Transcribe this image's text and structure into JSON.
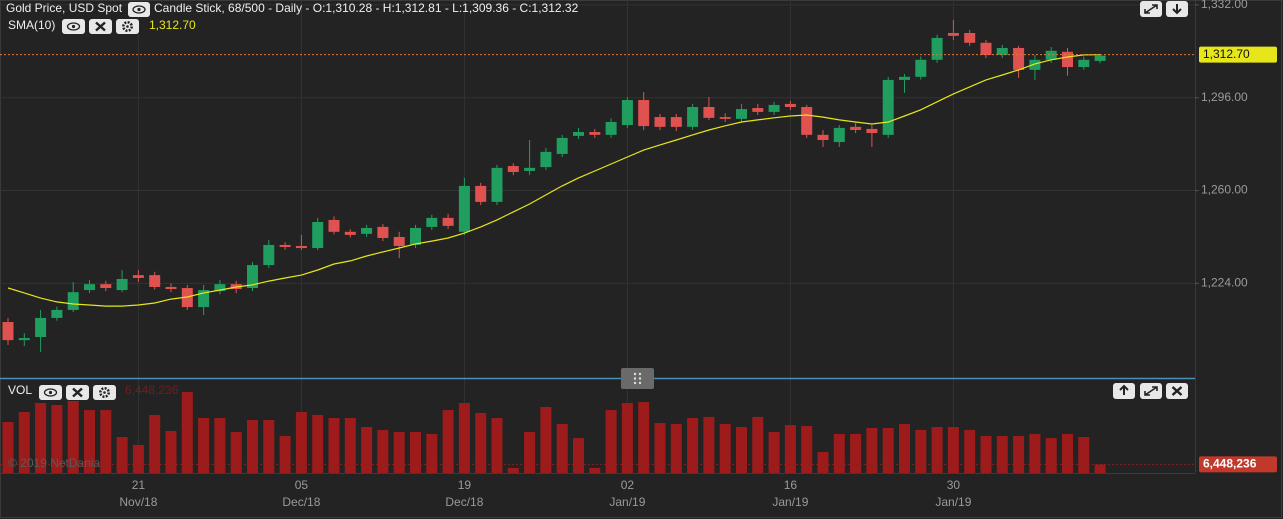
{
  "chart_data": [
    {
      "type": "candlestick",
      "title": "Gold Price, USD Spot",
      "subtitle": "Candle Stick, 68/500 - Daily - O:1,310.28 - H:1,312.81 - L:1,309.36 - C:1,312.32",
      "categories": [
        null,
        null,
        null,
        null,
        null,
        null,
        null,
        null,
        [
          "21",
          "Nov/18"
        ],
        null,
        null,
        null,
        null,
        null,
        null,
        null,
        null,
        null,
        [
          "05",
          "Dec/18"
        ],
        null,
        null,
        null,
        null,
        null,
        null,
        null,
        null,
        null,
        [
          "19",
          "Dec/18"
        ],
        null,
        null,
        null,
        null,
        null,
        null,
        null,
        null,
        null,
        [
          "02",
          "Jan/19"
        ],
        null,
        null,
        null,
        null,
        null,
        null,
        null,
        null,
        null,
        [
          "16",
          "Jan/19"
        ],
        null,
        null,
        null,
        null,
        null,
        null,
        null,
        null,
        null,
        [
          "30",
          "Jan/19"
        ],
        null,
        null,
        null,
        null,
        null,
        null,
        null,
        null,
        null
      ],
      "open": [
        1209.0,
        1202.0,
        1203.2,
        1210.6,
        1213.7,
        1221.4,
        1223.7,
        1221.4,
        1227.2,
        1227.2,
        1222.6,
        1222.2,
        1214.8,
        1221.0,
        1223.7,
        1222.2,
        1231.1,
        1238.9,
        1238.5,
        1237.7,
        1248.6,
        1244.0,
        1243.2,
        1245.9,
        1242.0,
        1238.9,
        1245.9,
        1249.4,
        1244.0,
        1261.8,
        1255.6,
        1269.5,
        1267.6,
        1269.1,
        1274.2,
        1281.2,
        1282.7,
        1281.6,
        1285.4,
        1295.1,
        1288.5,
        1288.5,
        1284.7,
        1292.4,
        1288.5,
        1287.8,
        1292.0,
        1290.5,
        1293.6,
        1292.4,
        1281.6,
        1278.8,
        1284.7,
        1283.9,
        1281.6,
        1302.9,
        1304.1,
        1310.7,
        1321.1,
        1321.1,
        1317.3,
        1312.6,
        1315.3,
        1306.8,
        1310.7,
        1313.8,
        1307.9,
        1310.28
      ],
      "high": [
        1210.6,
        1204.7,
        1213.7,
        1215.0,
        1224.5,
        1225.3,
        1225.0,
        1229.2,
        1229.2,
        1228.5,
        1224.0,
        1223.4,
        1223.4,
        1225.3,
        1225.0,
        1232.3,
        1240.8,
        1240.0,
        1242.8,
        1249.4,
        1250.0,
        1245.0,
        1246.7,
        1247.0,
        1244.0,
        1246.7,
        1250.6,
        1251.0,
        1264.9,
        1263.0,
        1270.0,
        1270.6,
        1279.6,
        1276.5,
        1281.6,
        1284.3,
        1283.9,
        1288.0,
        1296.3,
        1298.2,
        1289.7,
        1289.7,
        1293.6,
        1296.3,
        1290.0,
        1293.6,
        1293.6,
        1294.4,
        1294.8,
        1293.2,
        1283.5,
        1285.4,
        1286.2,
        1285.4,
        1304.1,
        1305.2,
        1312.0,
        1320.4,
        1326.2,
        1322.3,
        1318.4,
        1316.5,
        1316.1,
        1312.6,
        1315.7,
        1315.3,
        1312.0,
        1312.81
      ],
      "low": [
        1200.1,
        1199.7,
        1197.4,
        1209.5,
        1212.9,
        1220.2,
        1221.0,
        1220.6,
        1224.5,
        1221.6,
        1220.6,
        1213.7,
        1211.7,
        1219.8,
        1220.2,
        1221.0,
        1230.0,
        1237.0,
        1236.9,
        1236.9,
        1243.0,
        1241.8,
        1242.0,
        1240.4,
        1233.8,
        1237.7,
        1244.7,
        1245.1,
        1242.8,
        1254.4,
        1254.4,
        1266.0,
        1266.0,
        1268.0,
        1273.0,
        1280.0,
        1280.4,
        1280.4,
        1284.3,
        1283.5,
        1283.5,
        1283.1,
        1283.5,
        1287.4,
        1286.6,
        1286.6,
        1289.3,
        1289.3,
        1291.2,
        1280.4,
        1276.9,
        1276.9,
        1282.3,
        1276.9,
        1280.4,
        1297.9,
        1303.0,
        1309.5,
        1318.4,
        1316.1,
        1311.4,
        1311.4,
        1303.7,
        1302.9,
        1309.5,
        1304.5,
        1306.8,
        1309.36
      ],
      "close": [
        1202.0,
        1202.8,
        1210.6,
        1213.7,
        1220.6,
        1223.7,
        1222.2,
        1225.7,
        1226.1,
        1222.6,
        1221.8,
        1214.8,
        1221.4,
        1223.7,
        1221.8,
        1231.1,
        1238.9,
        1238.1,
        1237.7,
        1247.8,
        1244.0,
        1242.8,
        1245.5,
        1241.6,
        1238.5,
        1245.5,
        1249.4,
        1246.3,
        1261.8,
        1255.6,
        1268.8,
        1267.2,
        1268.8,
        1275.0,
        1280.4,
        1282.7,
        1281.6,
        1286.6,
        1295.1,
        1285.0,
        1284.7,
        1284.7,
        1292.4,
        1288.2,
        1287.8,
        1291.6,
        1290.5,
        1293.2,
        1292.4,
        1281.6,
        1279.6,
        1284.3,
        1283.5,
        1282.3,
        1302.9,
        1304.1,
        1310.7,
        1319.2,
        1320.0,
        1317.3,
        1312.6,
        1315.3,
        1306.8,
        1310.7,
        1314.2,
        1307.9,
        1310.7,
        1312.32
      ],
      "up_color": "#1f9e5f",
      "down_color": "#e0524f",
      "ylim": [
        1187.3,
        1333.9
      ],
      "yticks": [
        {
          "value": 1224,
          "label": "1,224.00"
        },
        {
          "value": 1260,
          "label": "1,260.00"
        },
        {
          "value": 1296,
          "label": "1,296.00"
        },
        {
          "value": 1332,
          "label": "1,332.00"
        }
      ],
      "grid": true,
      "overlay": {
        "name": "SMA(10)",
        "color": "#e6e61a",
        "values": [
          1222.2,
          1220.3,
          1218.3,
          1216.8,
          1216.0,
          1215.6,
          1215.2,
          1215.2,
          1215.6,
          1216.4,
          1217.9,
          1218.7,
          1220.3,
          1221.4,
          1222.6,
          1223.4,
          1224.9,
          1226.1,
          1227.2,
          1229.2,
          1231.5,
          1232.7,
          1234.6,
          1236.2,
          1237.7,
          1239.3,
          1240.4,
          1241.6,
          1243.5,
          1245.9,
          1248.6,
          1251.7,
          1254.8,
          1258.3,
          1261.8,
          1264.9,
          1267.6,
          1270.3,
          1273.0,
          1275.7,
          1277.7,
          1279.6,
          1281.6,
          1283.5,
          1285.1,
          1286.6,
          1287.4,
          1288.2,
          1288.9,
          1289.3,
          1288.5,
          1287.4,
          1286.6,
          1285.8,
          1286.6,
          1288.9,
          1291.3,
          1294.4,
          1297.5,
          1300.2,
          1302.9,
          1304.8,
          1306.8,
          1309.1,
          1310.7,
          1311.8,
          1312.6,
          1312.7
        ],
        "last": {
          "value": 1312.7,
          "label": "1,312.70"
        }
      }
    },
    {
      "type": "bar",
      "title": "VOL",
      "annotation": "© 2019 NetDania",
      "color": "#9e1b1b",
      "ylim": [
        0,
        70000000
      ],
      "values": [
        38400000,
        45900000,
        52700000,
        51200000,
        54200000,
        47400000,
        47400000,
        27100000,
        21100000,
        43700000,
        31600000,
        61000000,
        41400000,
        41400000,
        30900000,
        39900000,
        39900000,
        27900000,
        45900000,
        43700000,
        41400000,
        41400000,
        34600000,
        32400000,
        30900000,
        30900000,
        29400000,
        47400000,
        52700000,
        45200000,
        41400000,
        3800000,
        30900000,
        49700000,
        36900000,
        26300000,
        3800000,
        47400000,
        52700000,
        53400000,
        37600000,
        36900000,
        41400000,
        42200000,
        36900000,
        34600000,
        42200000,
        30900000,
        36100000,
        35400000,
        15800000,
        29400000,
        29400000,
        33900000,
        33900000,
        36900000,
        32400000,
        34600000,
        34600000,
        32400000,
        27900000,
        27900000,
        27900000,
        29400000,
        26300000,
        29400000,
        27100000,
        6448236
      ],
      "last": {
        "value": 6448236,
        "label": "6,448,236"
      }
    }
  ]
}
